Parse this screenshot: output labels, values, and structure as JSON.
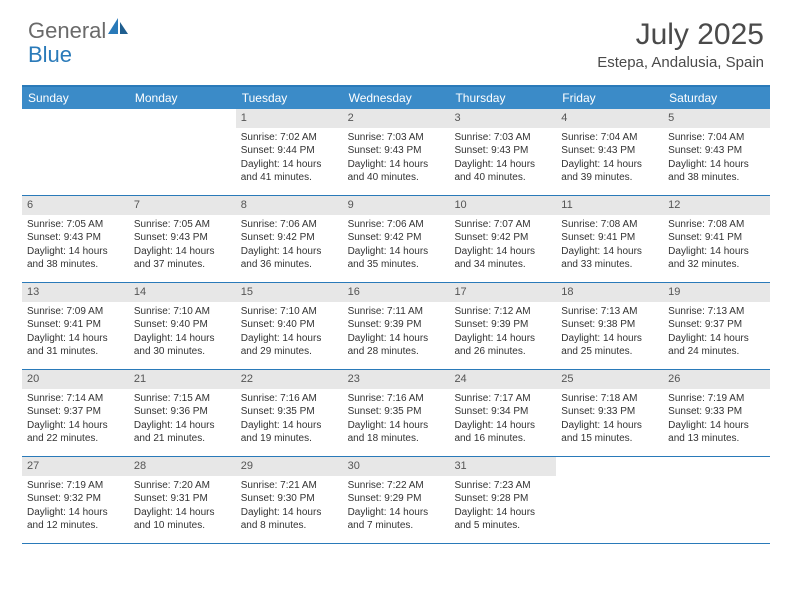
{
  "logo": {
    "part1": "General",
    "part2": "Blue"
  },
  "title": {
    "month": "July 2025",
    "location": "Estepa, Andalusia, Spain"
  },
  "colors": {
    "accent": "#2a7ab9",
    "header_bg": "#3b8bc8",
    "daynum_bg": "#e7e7e7",
    "text": "#333333",
    "muted": "#6a6a6a"
  },
  "weekdays": [
    "Sunday",
    "Monday",
    "Tuesday",
    "Wednesday",
    "Thursday",
    "Friday",
    "Saturday"
  ],
  "weeks": [
    [
      {
        "day": "",
        "sunrise": "",
        "sunset": "",
        "daylight": ""
      },
      {
        "day": "",
        "sunrise": "",
        "sunset": "",
        "daylight": ""
      },
      {
        "day": "1",
        "sunrise": "Sunrise: 7:02 AM",
        "sunset": "Sunset: 9:44 PM",
        "daylight": "Daylight: 14 hours and 41 minutes."
      },
      {
        "day": "2",
        "sunrise": "Sunrise: 7:03 AM",
        "sunset": "Sunset: 9:43 PM",
        "daylight": "Daylight: 14 hours and 40 minutes."
      },
      {
        "day": "3",
        "sunrise": "Sunrise: 7:03 AM",
        "sunset": "Sunset: 9:43 PM",
        "daylight": "Daylight: 14 hours and 40 minutes."
      },
      {
        "day": "4",
        "sunrise": "Sunrise: 7:04 AM",
        "sunset": "Sunset: 9:43 PM",
        "daylight": "Daylight: 14 hours and 39 minutes."
      },
      {
        "day": "5",
        "sunrise": "Sunrise: 7:04 AM",
        "sunset": "Sunset: 9:43 PM",
        "daylight": "Daylight: 14 hours and 38 minutes."
      }
    ],
    [
      {
        "day": "6",
        "sunrise": "Sunrise: 7:05 AM",
        "sunset": "Sunset: 9:43 PM",
        "daylight": "Daylight: 14 hours and 38 minutes."
      },
      {
        "day": "7",
        "sunrise": "Sunrise: 7:05 AM",
        "sunset": "Sunset: 9:43 PM",
        "daylight": "Daylight: 14 hours and 37 minutes."
      },
      {
        "day": "8",
        "sunrise": "Sunrise: 7:06 AM",
        "sunset": "Sunset: 9:42 PM",
        "daylight": "Daylight: 14 hours and 36 minutes."
      },
      {
        "day": "9",
        "sunrise": "Sunrise: 7:06 AM",
        "sunset": "Sunset: 9:42 PM",
        "daylight": "Daylight: 14 hours and 35 minutes."
      },
      {
        "day": "10",
        "sunrise": "Sunrise: 7:07 AM",
        "sunset": "Sunset: 9:42 PM",
        "daylight": "Daylight: 14 hours and 34 minutes."
      },
      {
        "day": "11",
        "sunrise": "Sunrise: 7:08 AM",
        "sunset": "Sunset: 9:41 PM",
        "daylight": "Daylight: 14 hours and 33 minutes."
      },
      {
        "day": "12",
        "sunrise": "Sunrise: 7:08 AM",
        "sunset": "Sunset: 9:41 PM",
        "daylight": "Daylight: 14 hours and 32 minutes."
      }
    ],
    [
      {
        "day": "13",
        "sunrise": "Sunrise: 7:09 AM",
        "sunset": "Sunset: 9:41 PM",
        "daylight": "Daylight: 14 hours and 31 minutes."
      },
      {
        "day": "14",
        "sunrise": "Sunrise: 7:10 AM",
        "sunset": "Sunset: 9:40 PM",
        "daylight": "Daylight: 14 hours and 30 minutes."
      },
      {
        "day": "15",
        "sunrise": "Sunrise: 7:10 AM",
        "sunset": "Sunset: 9:40 PM",
        "daylight": "Daylight: 14 hours and 29 minutes."
      },
      {
        "day": "16",
        "sunrise": "Sunrise: 7:11 AM",
        "sunset": "Sunset: 9:39 PM",
        "daylight": "Daylight: 14 hours and 28 minutes."
      },
      {
        "day": "17",
        "sunrise": "Sunrise: 7:12 AM",
        "sunset": "Sunset: 9:39 PM",
        "daylight": "Daylight: 14 hours and 26 minutes."
      },
      {
        "day": "18",
        "sunrise": "Sunrise: 7:13 AM",
        "sunset": "Sunset: 9:38 PM",
        "daylight": "Daylight: 14 hours and 25 minutes."
      },
      {
        "day": "19",
        "sunrise": "Sunrise: 7:13 AM",
        "sunset": "Sunset: 9:37 PM",
        "daylight": "Daylight: 14 hours and 24 minutes."
      }
    ],
    [
      {
        "day": "20",
        "sunrise": "Sunrise: 7:14 AM",
        "sunset": "Sunset: 9:37 PM",
        "daylight": "Daylight: 14 hours and 22 minutes."
      },
      {
        "day": "21",
        "sunrise": "Sunrise: 7:15 AM",
        "sunset": "Sunset: 9:36 PM",
        "daylight": "Daylight: 14 hours and 21 minutes."
      },
      {
        "day": "22",
        "sunrise": "Sunrise: 7:16 AM",
        "sunset": "Sunset: 9:35 PM",
        "daylight": "Daylight: 14 hours and 19 minutes."
      },
      {
        "day": "23",
        "sunrise": "Sunrise: 7:16 AM",
        "sunset": "Sunset: 9:35 PM",
        "daylight": "Daylight: 14 hours and 18 minutes."
      },
      {
        "day": "24",
        "sunrise": "Sunrise: 7:17 AM",
        "sunset": "Sunset: 9:34 PM",
        "daylight": "Daylight: 14 hours and 16 minutes."
      },
      {
        "day": "25",
        "sunrise": "Sunrise: 7:18 AM",
        "sunset": "Sunset: 9:33 PM",
        "daylight": "Daylight: 14 hours and 15 minutes."
      },
      {
        "day": "26",
        "sunrise": "Sunrise: 7:19 AM",
        "sunset": "Sunset: 9:33 PM",
        "daylight": "Daylight: 14 hours and 13 minutes."
      }
    ],
    [
      {
        "day": "27",
        "sunrise": "Sunrise: 7:19 AM",
        "sunset": "Sunset: 9:32 PM",
        "daylight": "Daylight: 14 hours and 12 minutes."
      },
      {
        "day": "28",
        "sunrise": "Sunrise: 7:20 AM",
        "sunset": "Sunset: 9:31 PM",
        "daylight": "Daylight: 14 hours and 10 minutes."
      },
      {
        "day": "29",
        "sunrise": "Sunrise: 7:21 AM",
        "sunset": "Sunset: 9:30 PM",
        "daylight": "Daylight: 14 hours and 8 minutes."
      },
      {
        "day": "30",
        "sunrise": "Sunrise: 7:22 AM",
        "sunset": "Sunset: 9:29 PM",
        "daylight": "Daylight: 14 hours and 7 minutes."
      },
      {
        "day": "31",
        "sunrise": "Sunrise: 7:23 AM",
        "sunset": "Sunset: 9:28 PM",
        "daylight": "Daylight: 14 hours and 5 minutes."
      },
      {
        "day": "",
        "sunrise": "",
        "sunset": "",
        "daylight": ""
      },
      {
        "day": "",
        "sunrise": "",
        "sunset": "",
        "daylight": ""
      }
    ]
  ]
}
